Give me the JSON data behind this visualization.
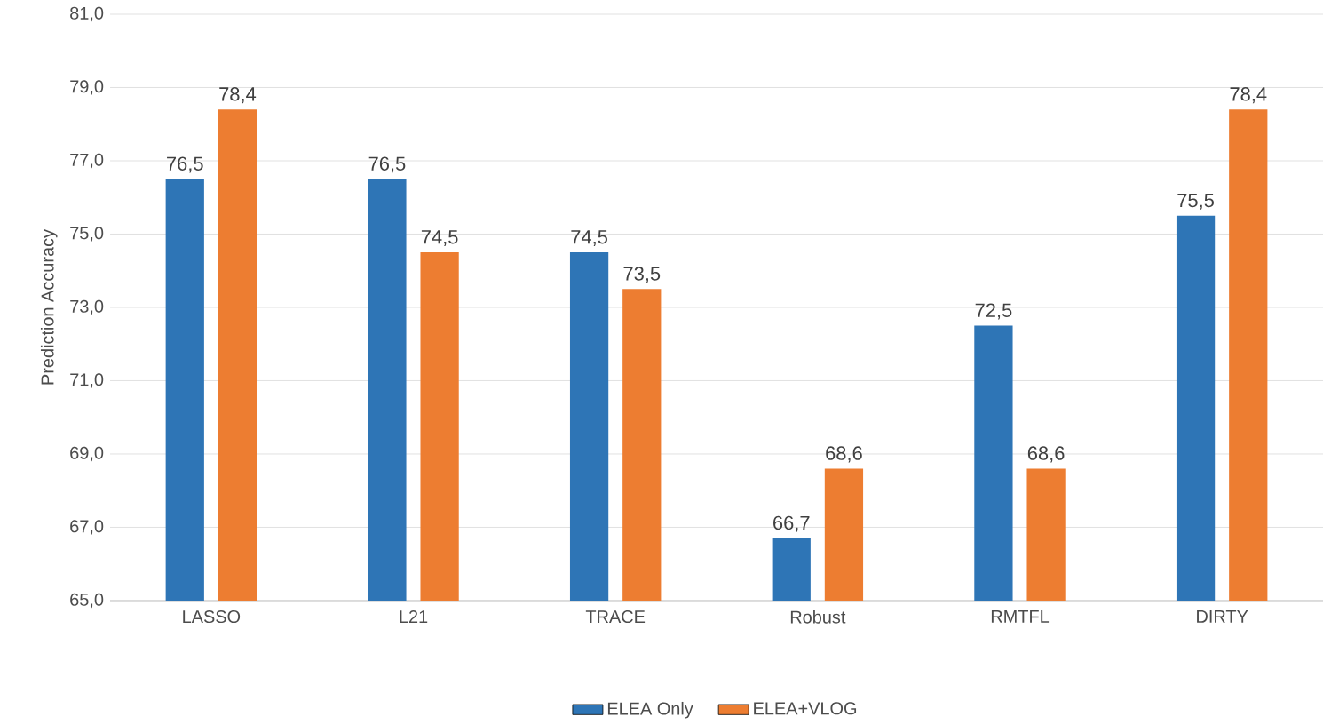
{
  "chart_data": {
    "type": "bar",
    "ylabel": "Prediction Accuracy",
    "categories": [
      "LASSO",
      "L21",
      "TRACE",
      "Robust",
      "RMTFL",
      "DIRTY"
    ],
    "series": [
      {
        "name": "ELEA Only",
        "color": "#2e75b6",
        "values": [
          76.5,
          76.5,
          74.5,
          66.7,
          72.5,
          75.5
        ],
        "value_labels": [
          "76,5",
          "76,5",
          "74,5",
          "66,7",
          "72,5",
          "75,5"
        ]
      },
      {
        "name": "ELEA+VLOG",
        "color": "#ed7d31",
        "values": [
          78.4,
          74.5,
          73.5,
          68.6,
          68.6,
          78.4
        ],
        "value_labels": [
          "78,4",
          "74,5",
          "73,5",
          "68,6",
          "68,6",
          "78,4"
        ]
      }
    ],
    "ylim": [
      65,
      81
    ],
    "yticks": [
      {
        "value": 65,
        "label": "65,0"
      },
      {
        "value": 67,
        "label": "67,0"
      },
      {
        "value": 69,
        "label": "69,0"
      },
      {
        "value": 71,
        "label": "71,0"
      },
      {
        "value": 73,
        "label": "73,0"
      },
      {
        "value": 75,
        "label": "75,0"
      },
      {
        "value": 77,
        "label": "77,0"
      },
      {
        "value": 79,
        "label": "79,0"
      },
      {
        "value": 81,
        "label": "81,0"
      }
    ],
    "grid": "y",
    "legend": "bottom"
  }
}
